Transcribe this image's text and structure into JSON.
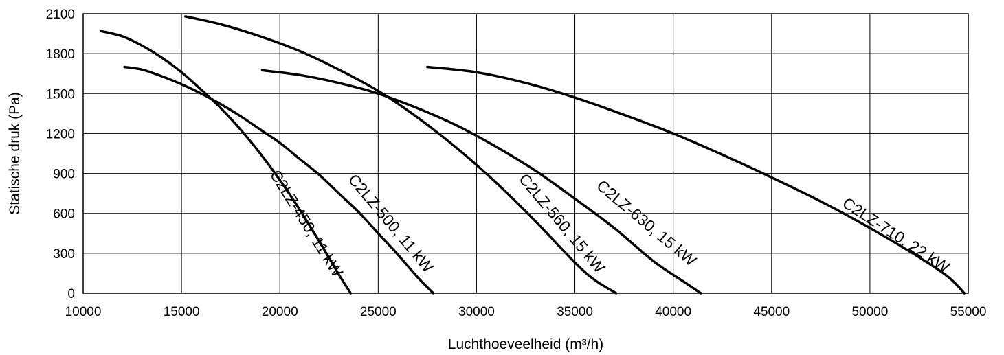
{
  "chart_data": {
    "type": "line",
    "xlabel": "Luchthoeveelheid (m³/h)",
    "ylabel": "Statische druk (Pa)",
    "xlim": [
      10000,
      55000
    ],
    "ylim": [
      0,
      2100
    ],
    "xticks": [
      10000,
      15000,
      20000,
      25000,
      30000,
      35000,
      40000,
      45000,
      50000,
      55000
    ],
    "yticks": [
      0,
      300,
      600,
      900,
      1200,
      1500,
      1800,
      2100
    ],
    "x_tick_labels": [
      "10000",
      "15000",
      "20000",
      "25000",
      "30000",
      "35000",
      "40000",
      "45000",
      "50000",
      "55000"
    ],
    "y_tick_labels": [
      "0",
      "300",
      "600",
      "900",
      "1200",
      "1500",
      "1800",
      "2100"
    ],
    "grid": true,
    "legend": "none",
    "series": [
      {
        "name": "C2LZ-450, 11 kW",
        "x": [
          10900,
          12000,
          13000,
          14000,
          15000,
          16000,
          17000,
          18000,
          19000,
          20000,
          21000,
          22000,
          23000,
          23600
        ],
        "y": [
          1970,
          1930,
          1860,
          1770,
          1660,
          1530,
          1390,
          1230,
          1050,
          850,
          630,
          390,
          140,
          0
        ]
      },
      {
        "name": "C2LZ-500, 11 kW",
        "x": [
          12100,
          13000,
          14000,
          15000,
          16000,
          17000,
          18000,
          19000,
          20000,
          21000,
          22000,
          23000,
          24000,
          25000,
          26000,
          27000,
          27800
        ],
        "y": [
          1700,
          1680,
          1630,
          1570,
          1500,
          1420,
          1330,
          1230,
          1130,
          1010,
          890,
          750,
          610,
          450,
          290,
          120,
          0
        ]
      },
      {
        "name": "C2LZ-560, 15 kW",
        "x": [
          15200,
          17000,
          19000,
          21000,
          23000,
          25000,
          27000,
          29000,
          31000,
          33000,
          35000,
          36000,
          37100
        ],
        "y": [
          2080,
          2020,
          1930,
          1820,
          1680,
          1520,
          1320,
          1090,
          830,
          540,
          230,
          100,
          0
        ]
      },
      {
        "name": "C2LZ-630, 15 kW",
        "x": [
          19100,
          21000,
          23000,
          25000,
          27000,
          29000,
          31000,
          33000,
          35000,
          37000,
          39000,
          40500,
          41400
        ],
        "y": [
          1675,
          1640,
          1580,
          1500,
          1390,
          1260,
          1100,
          920,
          710,
          490,
          240,
          90,
          0
        ]
      },
      {
        "name": "C2LZ-710, 22 kW",
        "x": [
          27500,
          30000,
          32500,
          35000,
          37500,
          40000,
          42500,
          45000,
          47500,
          50000,
          52500,
          54000,
          54800
        ],
        "y": [
          1700,
          1660,
          1580,
          1470,
          1340,
          1200,
          1040,
          870,
          690,
          490,
          270,
          120,
          0
        ]
      }
    ],
    "curve_labels": [
      {
        "text": "C2LZ-450, 11 kW",
        "x": 21300,
        "y": 520,
        "angle": 58
      },
      {
        "text": "C2LZ-500, 11 kW",
        "x": 25600,
        "y": 520,
        "angle": 50
      },
      {
        "text": "C2LZ-560, 15 kW",
        "x": 34300,
        "y": 520,
        "angle": 50
      },
      {
        "text": "C2LZ-630, 15 kW",
        "x": 38600,
        "y": 520,
        "angle": 40
      },
      {
        "text": "C2LZ-710, 22 kW",
        "x": 51300,
        "y": 430,
        "angle": 33
      }
    ]
  }
}
